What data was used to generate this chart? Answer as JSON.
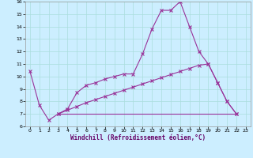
{
  "xlabel": "Windchill (Refroidissement éolien,°C)",
  "bg_color": "#cceeff",
  "line_color": "#993399",
  "grid_color": "#aadddd",
  "xlim": [
    -0.5,
    23.5
  ],
  "ylim": [
    6,
    16
  ],
  "yticks": [
    6,
    7,
    8,
    9,
    10,
    11,
    12,
    13,
    14,
    15,
    16
  ],
  "xtick_labels": [
    "0",
    "1",
    "2",
    "3",
    "4",
    "5",
    "6",
    "7",
    "8",
    "9",
    "10",
    "11",
    "12",
    "13",
    "14",
    "15",
    "16",
    "17",
    "18",
    "19",
    "20",
    "21",
    "22",
    "23"
  ],
  "xtick_positions": [
    0,
    1,
    2,
    3,
    4,
    5,
    6,
    7,
    8,
    9,
    10,
    11,
    12,
    13,
    14,
    15,
    16,
    17,
    18,
    19,
    20,
    21,
    22,
    23
  ],
  "line1_x": [
    0,
    1,
    2,
    3,
    4,
    5,
    6,
    7,
    8,
    9,
    10,
    11,
    12,
    13,
    14,
    15,
    16,
    17,
    18,
    19,
    20,
    21,
    22
  ],
  "line1_y": [
    10.4,
    7.7,
    6.5,
    7.0,
    7.4,
    8.7,
    9.3,
    9.5,
    9.8,
    10.0,
    10.2,
    10.2,
    11.8,
    13.8,
    15.3,
    15.3,
    16.0,
    14.0,
    12.0,
    11.0,
    9.5,
    8.0,
    7.0
  ],
  "line2_x": [
    3,
    4,
    5,
    6,
    7,
    8,
    9,
    10,
    11,
    12,
    13,
    14,
    15,
    16,
    17,
    18,
    19,
    20,
    21,
    22
  ],
  "line2_y": [
    7.0,
    7.3,
    7.6,
    7.9,
    8.15,
    8.4,
    8.65,
    8.9,
    9.15,
    9.4,
    9.65,
    9.9,
    10.15,
    10.4,
    10.65,
    10.9,
    11.0,
    9.5,
    8.0,
    7.0
  ],
  "line3_x": [
    3,
    22
  ],
  "line3_y": [
    7.0,
    7.0
  ]
}
